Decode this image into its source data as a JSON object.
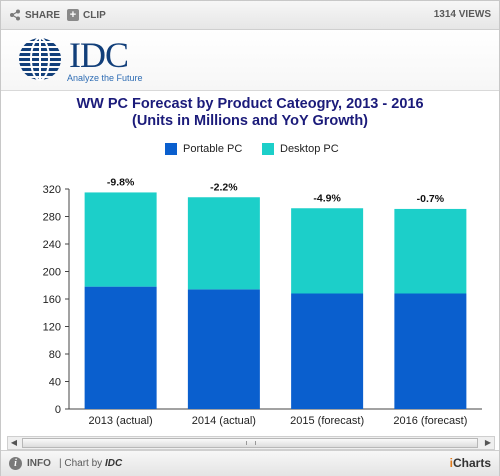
{
  "toolbar": {
    "share_label": "SHARE",
    "clip_label": "CLIP",
    "views_label": "1314 VIEWS"
  },
  "logo": {
    "brand": "IDC",
    "tagline": "Analyze the Future"
  },
  "footer": {
    "info_label": "INFO",
    "chart_by_prefix": "| Chart by",
    "chart_by_brand": "IDC",
    "provider_prefix": "i",
    "provider_rest": "Charts"
  },
  "colors": {
    "portable": "#0a5fce",
    "desktop": "#1ccfc9"
  },
  "chart_data": {
    "type": "bar",
    "stacked": true,
    "title": "WW PC Forecast by Product Cateogry, 2013 - 2016",
    "subtitle": "(Units in Millions and YoY Growth)",
    "categories": [
      "2013 (actual)",
      "2014 (actual)",
      "2015 (forecast)",
      "2016 (forecast)"
    ],
    "series": [
      {
        "name": "Portable PC",
        "values": [
          178,
          174,
          168,
          168
        ]
      },
      {
        "name": "Desktop PC",
        "values": [
          137,
          134,
          124,
          123
        ]
      }
    ],
    "annotations": [
      "-9.8%",
      "-2.2%",
      "-4.9%",
      "-0.7%"
    ],
    "ylim": [
      0,
      320
    ],
    "yticks": [
      0,
      40,
      80,
      120,
      160,
      200,
      240,
      280,
      320
    ],
    "grid": false,
    "legend": "top"
  }
}
